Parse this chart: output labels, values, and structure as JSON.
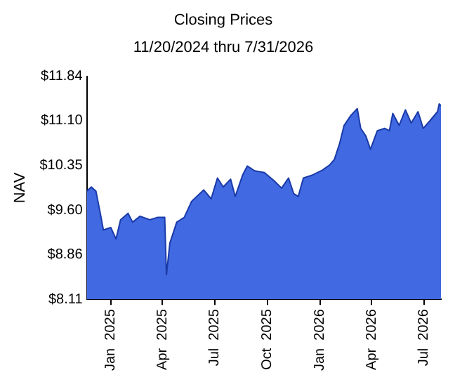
{
  "chart_data": {
    "type": "area",
    "title": "Closing Prices",
    "subtitle": "11/20/2024 thru 7/31/2026",
    "ylabel": "NAV",
    "x": [
      "2024-11-20",
      "2024-11-28",
      "2024-12-06",
      "2024-12-14",
      "2024-12-19",
      "2025-01-01",
      "2025-01-10",
      "2025-01-18",
      "2025-01-31",
      "2025-02-08",
      "2025-02-21",
      "2025-03-10",
      "2025-03-23",
      "2025-04-05",
      "2025-04-08",
      "2025-04-14",
      "2025-04-26",
      "2025-05-09",
      "2025-05-22",
      "2025-06-12",
      "2025-06-25",
      "2025-07-06",
      "2025-07-16",
      "2025-07-29",
      "2025-08-06",
      "2025-08-19",
      "2025-08-27",
      "2025-09-09",
      "2025-09-26",
      "2025-10-12",
      "2025-10-26",
      "2025-11-07",
      "2025-11-16",
      "2025-11-24",
      "2025-12-03",
      "2025-12-19",
      "2026-01-05",
      "2026-01-18",
      "2026-01-26",
      "2026-02-04",
      "2026-02-12",
      "2026-02-24",
      "2026-03-07",
      "2026-03-13",
      "2026-03-22",
      "2026-03-30",
      "2026-04-11",
      "2026-04-24",
      "2026-05-02",
      "2026-05-08",
      "2026-05-19",
      "2026-05-30",
      "2026-06-09",
      "2026-06-21",
      "2026-06-30",
      "2026-07-12",
      "2026-07-25",
      "2026-07-28",
      "2026-07-31"
    ],
    "series": [
      {
        "color": "#4169e1",
        "values": [
          9.92,
          9.99,
          9.92,
          9.53,
          9.27,
          9.31,
          9.12,
          9.44,
          9.55,
          9.4,
          9.5,
          9.44,
          9.48,
          9.48,
          8.52,
          9.05,
          9.4,
          9.48,
          9.75,
          9.94,
          9.79,
          10.14,
          9.99,
          10.12,
          9.83,
          10.19,
          10.34,
          10.26,
          10.23,
          10.1,
          9.97,
          10.14,
          9.88,
          9.83,
          10.14,
          10.19,
          10.27,
          10.36,
          10.45,
          10.71,
          11.02,
          11.19,
          11.3,
          10.97,
          10.84,
          10.62,
          10.93,
          10.97,
          10.93,
          11.22,
          11.02,
          11.28,
          11.06,
          11.25,
          10.97,
          11.1,
          11.25,
          11.38,
          11.35
        ]
      }
    ],
    "xlim": [
      "2024-11-20",
      "2026-07-31"
    ],
    "xticks": [
      {
        "value": "2025-01-01",
        "label": "Jan  2025"
      },
      {
        "value": "2025-04-01",
        "label": "Apr  2025"
      },
      {
        "value": "2025-07-01",
        "label": "Jul  2025"
      },
      {
        "value": "2025-10-01",
        "label": "Oct  2025"
      },
      {
        "value": "2026-01-01",
        "label": "Jan  2026"
      },
      {
        "value": "2026-04-01",
        "label": "Apr  2026"
      },
      {
        "value": "2026-07-01",
        "label": "Jul  2026"
      }
    ],
    "ylim": [
      8.11,
      11.84
    ],
    "yticks": [
      {
        "value": 8.11,
        "label": "$8.11"
      },
      {
        "value": 8.86,
        "label": "$8.86"
      },
      {
        "value": 9.6,
        "label": "$9.60"
      },
      {
        "value": 10.35,
        "label": "$10.35"
      },
      {
        "value": 11.1,
        "label": "$11.10"
      },
      {
        "value": 11.84,
        "label": "$11.84"
      }
    ],
    "grid": false,
    "legend": false
  }
}
